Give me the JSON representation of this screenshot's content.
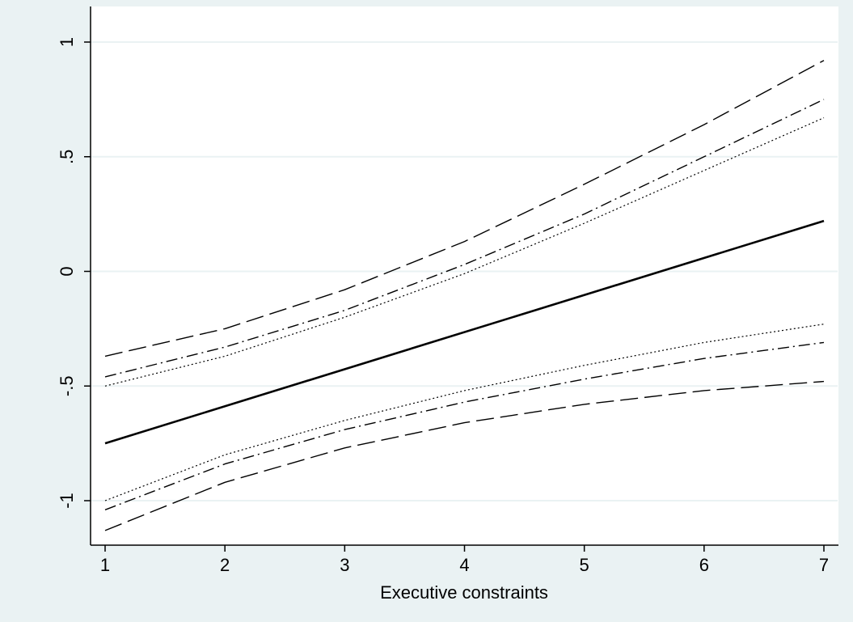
{
  "chart_data": {
    "type": "line",
    "title": "",
    "xlabel": "Executive constraints",
    "ylabel": "",
    "xlim": [
      1,
      7
    ],
    "ylim": [
      -1.18,
      1.04
    ],
    "x_ticks": [
      1,
      2,
      3,
      4,
      5,
      6,
      7
    ],
    "y_ticks": [
      1,
      0.5,
      0,
      -0.5,
      -1
    ],
    "y_tick_labels": [
      "1",
      ".5",
      "0",
      "-.5",
      "-1"
    ],
    "grid": "horizontal",
    "legend": "none",
    "colors": {
      "background": "#eaf2f3",
      "plot_area": "#ffffff",
      "gridline": "#eaf2f3",
      "lines": "#000000"
    },
    "series": [
      {
        "style": "solid",
        "x": [
          1,
          7
        ],
        "y": [
          -0.75,
          0.22
        ]
      },
      {
        "style": "dash",
        "x": [
          1,
          2,
          3,
          4,
          5,
          6,
          7
        ],
        "y": [
          -0.37,
          -0.25,
          -0.08,
          0.13,
          0.38,
          0.64,
          0.92
        ]
      },
      {
        "style": "dash",
        "x": [
          1,
          2,
          3,
          4,
          5,
          6,
          7
        ],
        "y": [
          -1.13,
          -0.92,
          -0.77,
          -0.66,
          -0.58,
          -0.52,
          -0.48
        ]
      },
      {
        "style": "dashdot",
        "x": [
          1,
          2,
          3,
          4,
          5,
          6,
          7
        ],
        "y": [
          -0.46,
          -0.33,
          -0.17,
          0.03,
          0.25,
          0.5,
          0.75
        ]
      },
      {
        "style": "dashdot",
        "x": [
          1,
          2,
          3,
          4,
          5,
          6,
          7
        ],
        "y": [
          -1.04,
          -0.84,
          -0.69,
          -0.57,
          -0.47,
          -0.38,
          -0.31
        ]
      },
      {
        "style": "dot",
        "x": [
          1,
          2,
          3,
          4,
          5,
          6,
          7
        ],
        "y": [
          -0.5,
          -0.37,
          -0.2,
          -0.01,
          0.21,
          0.44,
          0.67
        ]
      },
      {
        "style": "dot",
        "x": [
          1,
          2,
          3,
          4,
          5,
          6,
          7
        ],
        "y": [
          -1.0,
          -0.8,
          -0.65,
          -0.52,
          -0.41,
          -0.31,
          -0.23
        ]
      }
    ]
  }
}
